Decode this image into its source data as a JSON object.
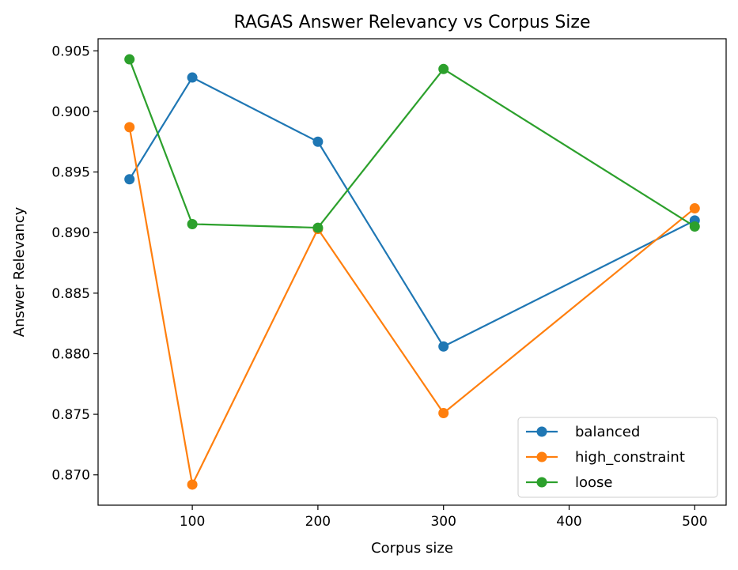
{
  "chart_data": {
    "type": "line",
    "title": "RAGAS Answer Relevancy vs Corpus Size",
    "xlabel": "Corpus size",
    "ylabel": "Answer Relevancy",
    "x": [
      50,
      100,
      200,
      300,
      500
    ],
    "xlim": [
      25,
      525
    ],
    "ylim": [
      0.8675,
      0.906
    ],
    "xticks": [
      100,
      200,
      300,
      400,
      500
    ],
    "yticks": [
      0.87,
      0.875,
      0.88,
      0.885,
      0.89,
      0.895,
      0.9,
      0.905
    ],
    "grid": false,
    "legend_position": "lower-right",
    "series": [
      {
        "name": "balanced",
        "color": "#1f77b4",
        "values": [
          0.8944,
          0.9028,
          0.8975,
          0.8806,
          0.891
        ]
      },
      {
        "name": "high_constraint",
        "color": "#ff7f0e",
        "values": [
          0.8987,
          0.8692,
          0.8903,
          0.8751,
          0.892
        ]
      },
      {
        "name": "loose",
        "color": "#2ca02c",
        "values": [
          0.9043,
          0.8907,
          0.8904,
          0.9035,
          0.8905
        ]
      }
    ]
  }
}
